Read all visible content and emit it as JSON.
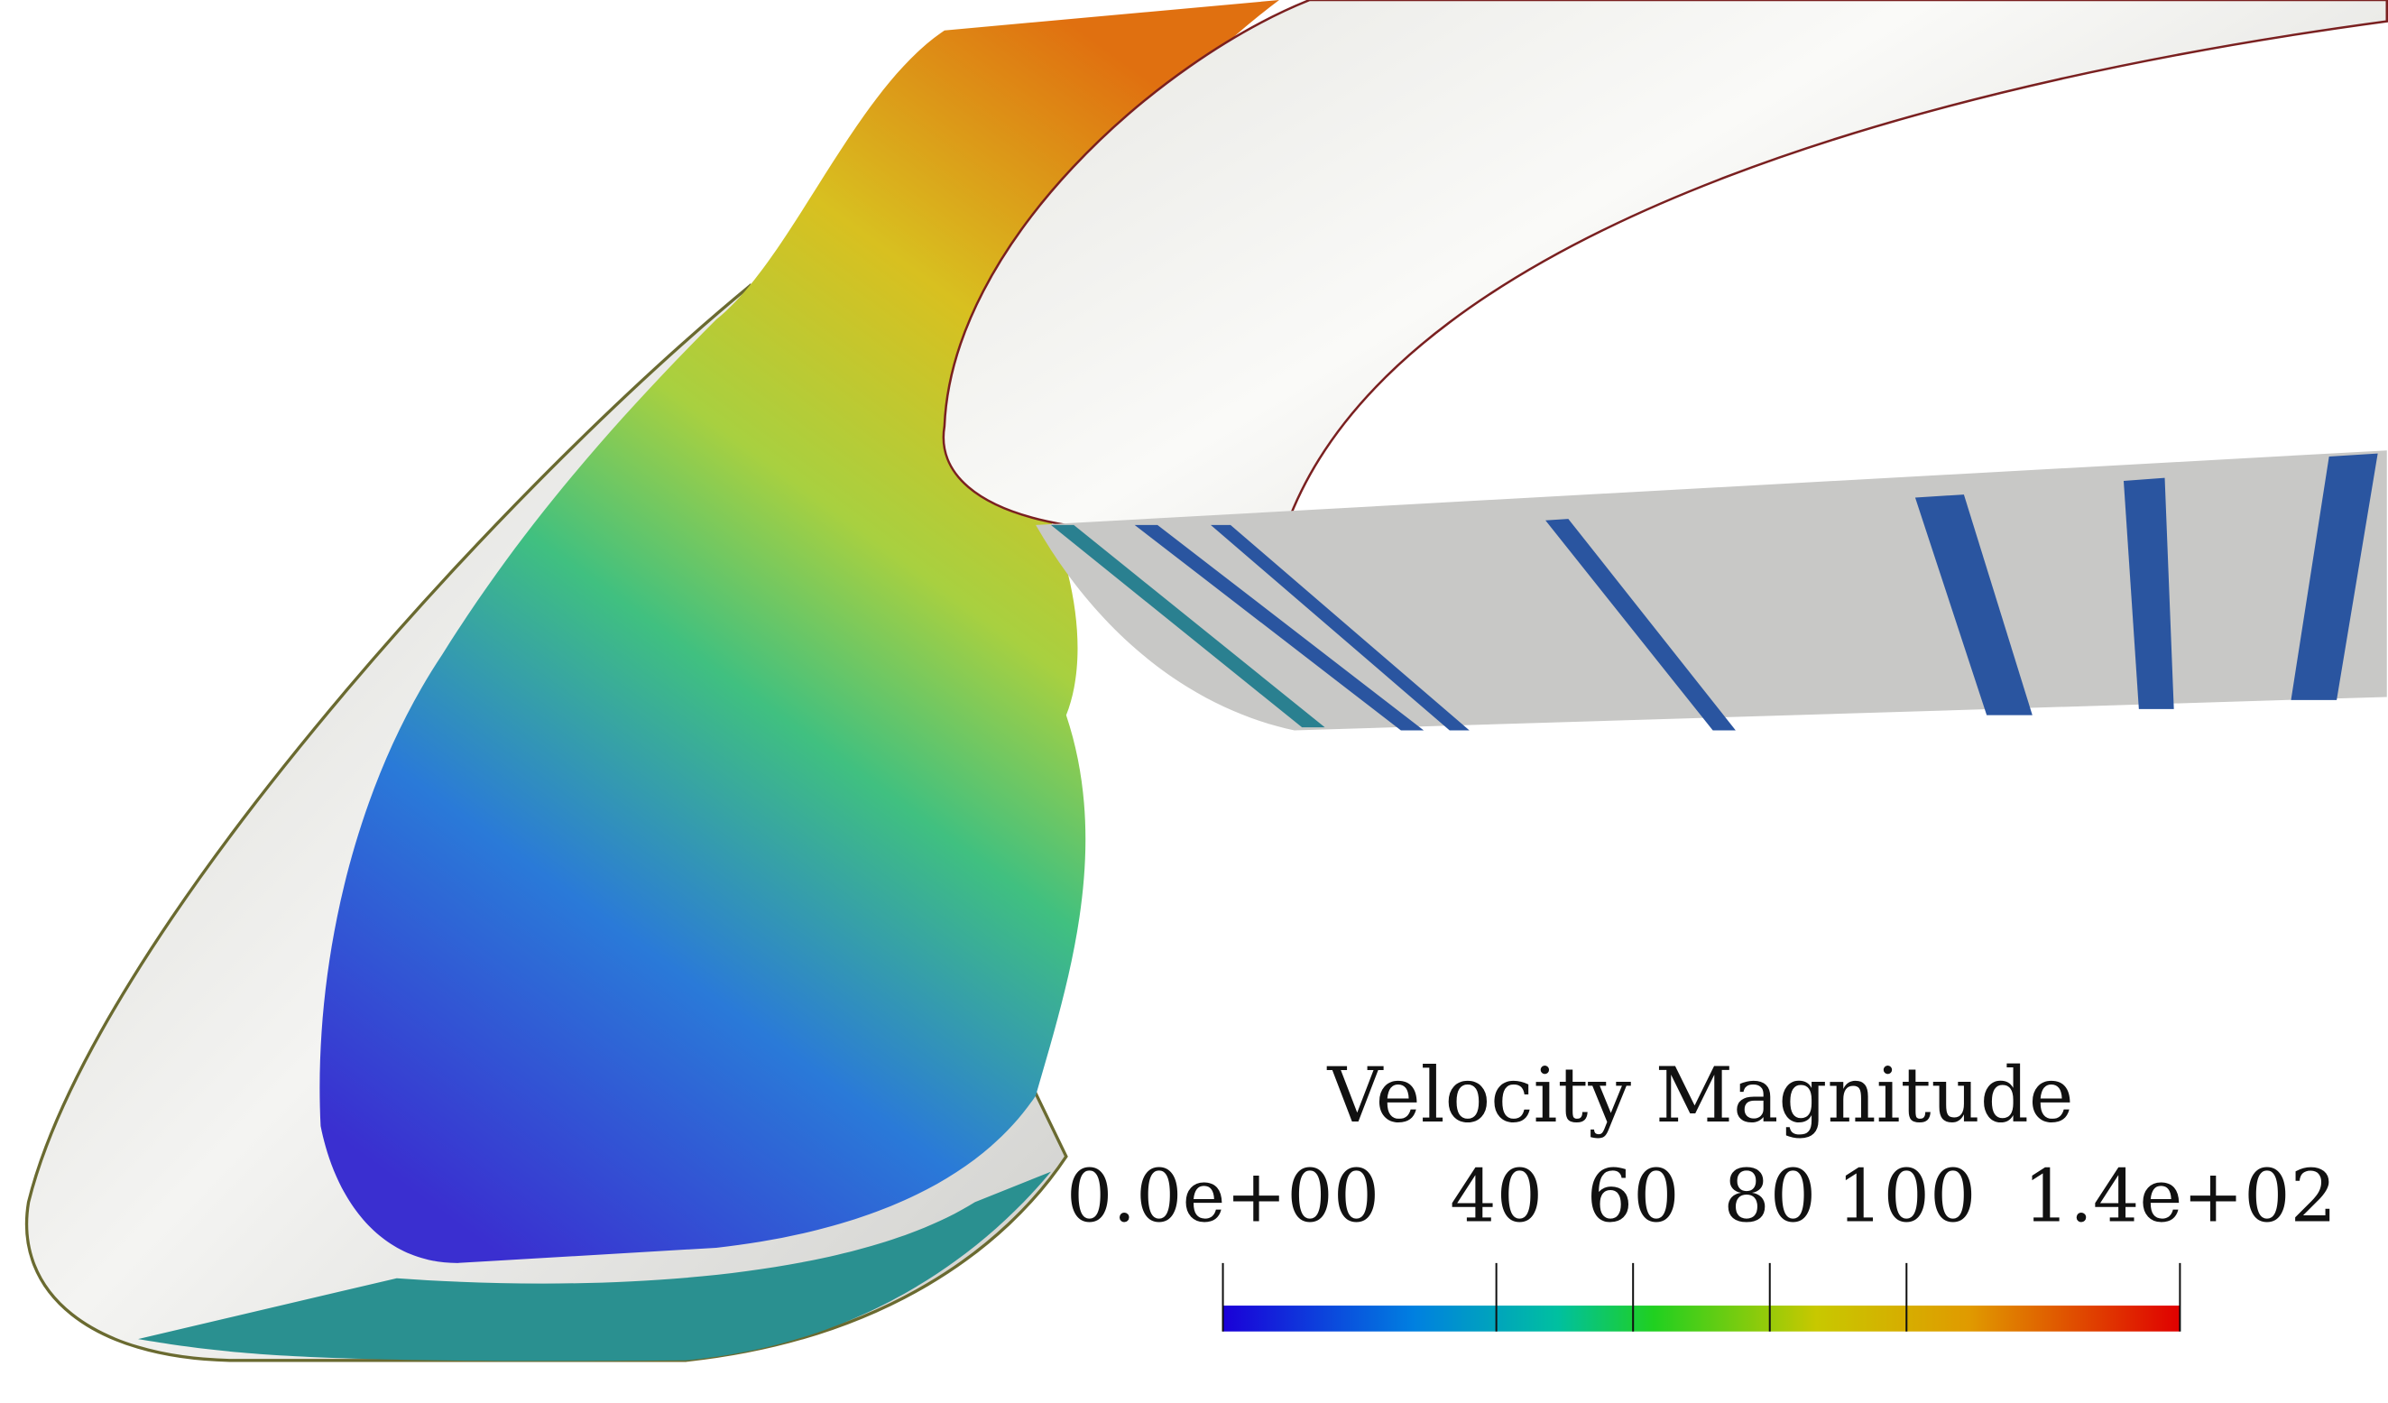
{
  "colorbar": {
    "title": "Velocity Magnitude",
    "range": [
      0,
      140
    ],
    "ticks": [
      {
        "value": 0,
        "label": "0.0e+00"
      },
      40,
      60,
      80,
      100,
      {
        "value": 140,
        "label": "1.4e+02"
      }
    ]
  }
}
